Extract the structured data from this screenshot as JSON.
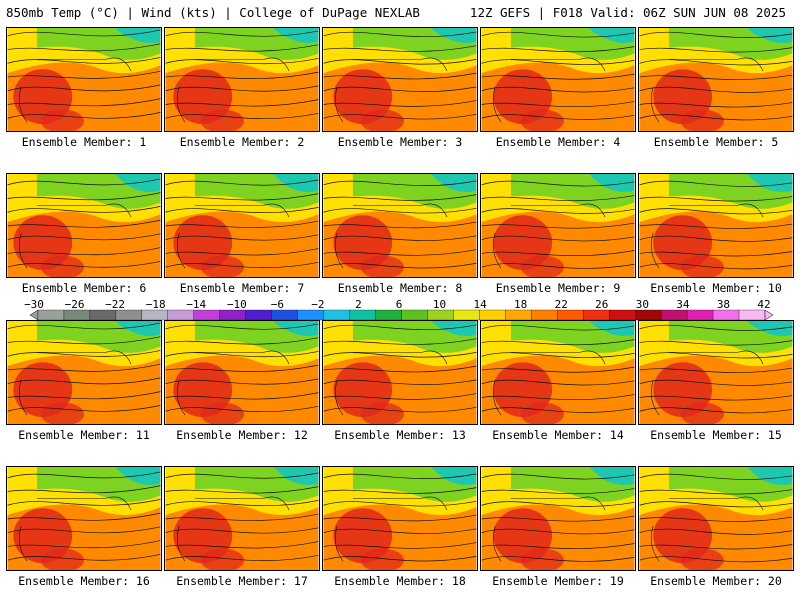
{
  "header": {
    "left": "850mb Temp (°C) | Wind (kts) | College of DuPage NEXLAB",
    "right": "12Z GEFS | F018 Valid: 06Z SUN JUN 08 2025"
  },
  "members": [
    {
      "label": "Ensemble Member: 1"
    },
    {
      "label": "Ensemble Member: 2"
    },
    {
      "label": "Ensemble Member: 3"
    },
    {
      "label": "Ensemble Member: 4"
    },
    {
      "label": "Ensemble Member: 5"
    },
    {
      "label": "Ensemble Member: 6"
    },
    {
      "label": "Ensemble Member: 7"
    },
    {
      "label": "Ensemble Member: 8"
    },
    {
      "label": "Ensemble Member: 9"
    },
    {
      "label": "Ensemble Member: 10"
    },
    {
      "label": "Ensemble Member: 11"
    },
    {
      "label": "Ensemble Member: 12"
    },
    {
      "label": "Ensemble Member: 13"
    },
    {
      "label": "Ensemble Member: 14"
    },
    {
      "label": "Ensemble Member: 15"
    },
    {
      "label": "Ensemble Member: 16"
    },
    {
      "label": "Ensemble Member: 17"
    },
    {
      "label": "Ensemble Member: 18"
    },
    {
      "label": "Ensemble Member: 19"
    },
    {
      "label": "Ensemble Member: 20"
    }
  ],
  "colorbar": {
    "ticks": [
      "−30",
      "−26",
      "−22",
      "−18",
      "−14",
      "−10",
      "−6",
      "−2",
      "2",
      "6",
      "10",
      "14",
      "18",
      "22",
      "26",
      "30",
      "34",
      "38",
      "42"
    ],
    "colors": [
      "#9aa09a",
      "#7a8a7a",
      "#6a6a6a",
      "#8f8f8f",
      "#b5b5c5",
      "#c79ad8",
      "#c040d8",
      "#9020c8",
      "#5020d0",
      "#2050e0",
      "#1e90ff",
      "#20c0e0",
      "#10c0a0",
      "#20b040",
      "#60c020",
      "#a0d020",
      "#e8e810",
      "#ffd000",
      "#ffaa00",
      "#ff8000",
      "#ff5a00",
      "#f03010",
      "#d01010",
      "#a00808",
      "#c01070",
      "#e020b0",
      "#f070e8",
      "#f8b8f0"
    ]
  },
  "colors": {
    "hot": "#e0281a",
    "warm": "#ff8a00",
    "mild": "#ffe000",
    "cool": "#7ed321",
    "cold": "#1ec8b0",
    "contour": "#111111"
  }
}
